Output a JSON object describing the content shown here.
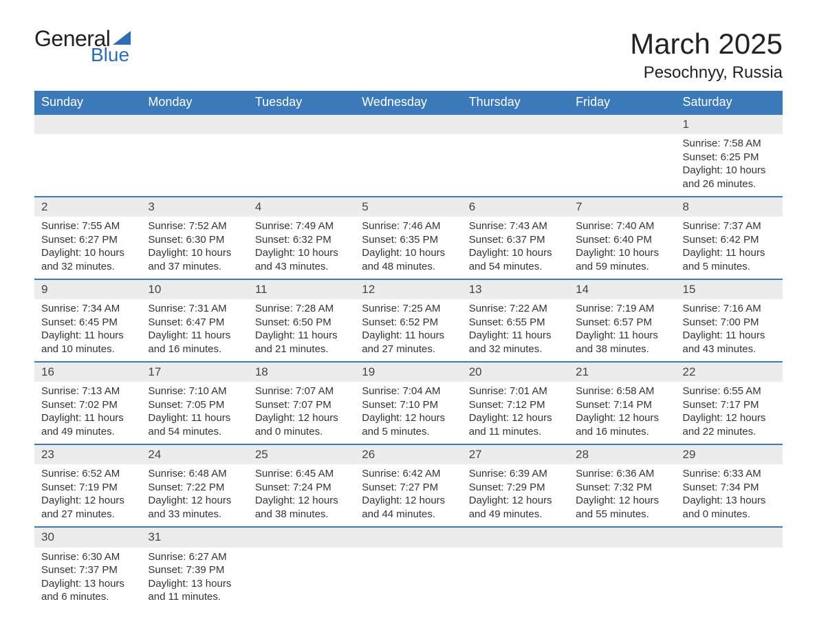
{
  "brand": {
    "word1": "General",
    "word2": "Blue"
  },
  "title": "March 2025",
  "location": "Pesochnyy, Russia",
  "colors": {
    "header_bg": "#3c79b8",
    "header_text": "#ffffff",
    "daynum_bg": "#ececec",
    "row_border": "#3c79b8",
    "body_text": "#333333",
    "brand_accent": "#2d6db3"
  },
  "typography": {
    "title_fontsize": 42,
    "location_fontsize": 24,
    "header_fontsize": 18,
    "cell_fontsize": 15
  },
  "weekdays": [
    "Sunday",
    "Monday",
    "Tuesday",
    "Wednesday",
    "Thursday",
    "Friday",
    "Saturday"
  ],
  "grid": {
    "columns": 7,
    "first_weekday_index": 6,
    "days": [
      {
        "n": 1,
        "sunrise": "7:58 AM",
        "sunset": "6:25 PM",
        "daylight": "10 hours and 26 minutes."
      },
      {
        "n": 2,
        "sunrise": "7:55 AM",
        "sunset": "6:27 PM",
        "daylight": "10 hours and 32 minutes."
      },
      {
        "n": 3,
        "sunrise": "7:52 AM",
        "sunset": "6:30 PM",
        "daylight": "10 hours and 37 minutes."
      },
      {
        "n": 4,
        "sunrise": "7:49 AM",
        "sunset": "6:32 PM",
        "daylight": "10 hours and 43 minutes."
      },
      {
        "n": 5,
        "sunrise": "7:46 AM",
        "sunset": "6:35 PM",
        "daylight": "10 hours and 48 minutes."
      },
      {
        "n": 6,
        "sunrise": "7:43 AM",
        "sunset": "6:37 PM",
        "daylight": "10 hours and 54 minutes."
      },
      {
        "n": 7,
        "sunrise": "7:40 AM",
        "sunset": "6:40 PM",
        "daylight": "10 hours and 59 minutes."
      },
      {
        "n": 8,
        "sunrise": "7:37 AM",
        "sunset": "6:42 PM",
        "daylight": "11 hours and 5 minutes."
      },
      {
        "n": 9,
        "sunrise": "7:34 AM",
        "sunset": "6:45 PM",
        "daylight": "11 hours and 10 minutes."
      },
      {
        "n": 10,
        "sunrise": "7:31 AM",
        "sunset": "6:47 PM",
        "daylight": "11 hours and 16 minutes."
      },
      {
        "n": 11,
        "sunrise": "7:28 AM",
        "sunset": "6:50 PM",
        "daylight": "11 hours and 21 minutes."
      },
      {
        "n": 12,
        "sunrise": "7:25 AM",
        "sunset": "6:52 PM",
        "daylight": "11 hours and 27 minutes."
      },
      {
        "n": 13,
        "sunrise": "7:22 AM",
        "sunset": "6:55 PM",
        "daylight": "11 hours and 32 minutes."
      },
      {
        "n": 14,
        "sunrise": "7:19 AM",
        "sunset": "6:57 PM",
        "daylight": "11 hours and 38 minutes."
      },
      {
        "n": 15,
        "sunrise": "7:16 AM",
        "sunset": "7:00 PM",
        "daylight": "11 hours and 43 minutes."
      },
      {
        "n": 16,
        "sunrise": "7:13 AM",
        "sunset": "7:02 PM",
        "daylight": "11 hours and 49 minutes."
      },
      {
        "n": 17,
        "sunrise": "7:10 AM",
        "sunset": "7:05 PM",
        "daylight": "11 hours and 54 minutes."
      },
      {
        "n": 18,
        "sunrise": "7:07 AM",
        "sunset": "7:07 PM",
        "daylight": "12 hours and 0 minutes."
      },
      {
        "n": 19,
        "sunrise": "7:04 AM",
        "sunset": "7:10 PM",
        "daylight": "12 hours and 5 minutes."
      },
      {
        "n": 20,
        "sunrise": "7:01 AM",
        "sunset": "7:12 PM",
        "daylight": "12 hours and 11 minutes."
      },
      {
        "n": 21,
        "sunrise": "6:58 AM",
        "sunset": "7:14 PM",
        "daylight": "12 hours and 16 minutes."
      },
      {
        "n": 22,
        "sunrise": "6:55 AM",
        "sunset": "7:17 PM",
        "daylight": "12 hours and 22 minutes."
      },
      {
        "n": 23,
        "sunrise": "6:52 AM",
        "sunset": "7:19 PM",
        "daylight": "12 hours and 27 minutes."
      },
      {
        "n": 24,
        "sunrise": "6:48 AM",
        "sunset": "7:22 PM",
        "daylight": "12 hours and 33 minutes."
      },
      {
        "n": 25,
        "sunrise": "6:45 AM",
        "sunset": "7:24 PM",
        "daylight": "12 hours and 38 minutes."
      },
      {
        "n": 26,
        "sunrise": "6:42 AM",
        "sunset": "7:27 PM",
        "daylight": "12 hours and 44 minutes."
      },
      {
        "n": 27,
        "sunrise": "6:39 AM",
        "sunset": "7:29 PM",
        "daylight": "12 hours and 49 minutes."
      },
      {
        "n": 28,
        "sunrise": "6:36 AM",
        "sunset": "7:32 PM",
        "daylight": "12 hours and 55 minutes."
      },
      {
        "n": 29,
        "sunrise": "6:33 AM",
        "sunset": "7:34 PM",
        "daylight": "13 hours and 0 minutes."
      },
      {
        "n": 30,
        "sunrise": "6:30 AM",
        "sunset": "7:37 PM",
        "daylight": "13 hours and 6 minutes."
      },
      {
        "n": 31,
        "sunrise": "6:27 AM",
        "sunset": "7:39 PM",
        "daylight": "13 hours and 11 minutes."
      }
    ]
  },
  "labels": {
    "sunrise": "Sunrise:",
    "sunset": "Sunset:",
    "daylight": "Daylight:"
  }
}
